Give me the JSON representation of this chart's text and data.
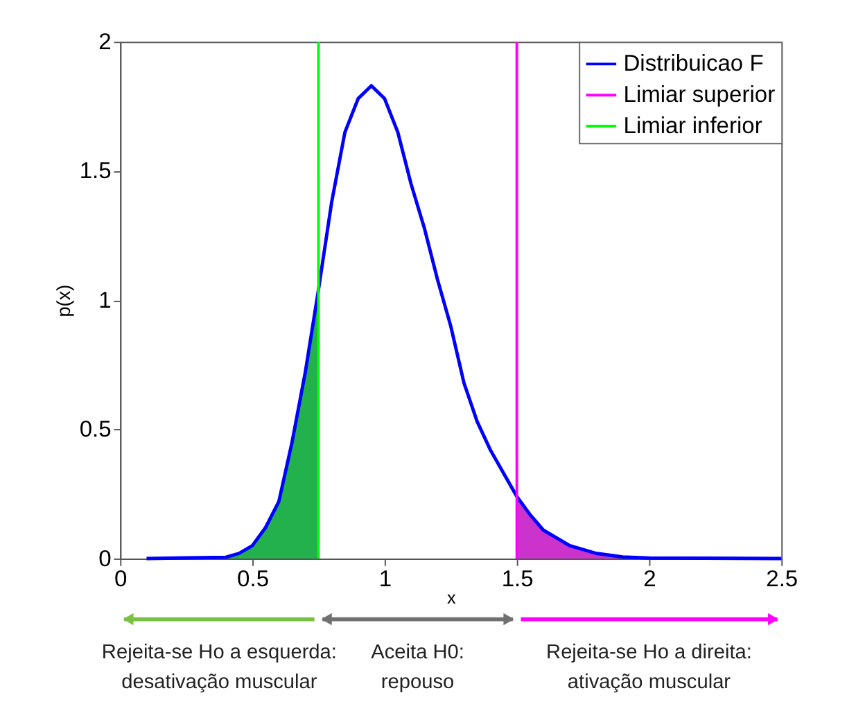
{
  "chart_data": {
    "type": "line",
    "xlabel": "x",
    "ylabel": "p(x)",
    "xlim": [
      0,
      2.5
    ],
    "xticks": [
      0,
      0.5,
      1,
      1.5,
      2,
      2.5
    ],
    "ylim": [
      0,
      2
    ],
    "yticks": [
      0,
      0.5,
      1,
      1.5,
      2
    ],
    "grid": false,
    "legend": "top right",
    "marker": "none",
    "line_style": "solid",
    "series": [
      {
        "type": "area",
        "color": "#22b14c",
        "x": [
          0.1,
          0.4,
          0.45,
          0.5,
          0.55,
          0.6,
          0.65,
          0.7,
          0.75
        ],
        "values": [
          0,
          0.005,
          0.02,
          0.05,
          0.12,
          0.22,
          0.45,
          0.72,
          1.04
        ]
      },
      {
        "type": "area",
        "color": "#cc33cc",
        "x": [
          1.5,
          1.55,
          1.6,
          1.7,
          1.8,
          1.9,
          2.0
        ],
        "values": [
          0.24,
          0.17,
          0.11,
          0.05,
          0.02,
          0.006,
          0.002
        ]
      },
      {
        "name": "Distribuicao F",
        "color": "#0000ff",
        "x": [
          0.1,
          0.4,
          0.45,
          0.5,
          0.55,
          0.6,
          0.65,
          0.7,
          0.75,
          0.8,
          0.85,
          0.9,
          0.95,
          1.0,
          1.05,
          1.1,
          1.15,
          1.2,
          1.25,
          1.3,
          1.35,
          1.4,
          1.45,
          1.5,
          1.55,
          1.6,
          1.7,
          1.8,
          1.9,
          2.0,
          2.5
        ],
        "values": [
          0,
          0.005,
          0.02,
          0.05,
          0.12,
          0.22,
          0.45,
          0.72,
          1.04,
          1.38,
          1.65,
          1.78,
          1.83,
          1.78,
          1.65,
          1.45,
          1.28,
          1.08,
          0.9,
          0.68,
          0.53,
          0.42,
          0.33,
          0.24,
          0.17,
          0.11,
          0.05,
          0.02,
          0.006,
          0.002,
          0
        ]
      },
      {
        "name": "Limiar superior",
        "color": "#ff00ff",
        "x": [
          1.5,
          1.5
        ],
        "values": [
          0,
          2
        ]
      },
      {
        "name": "Limiar inferior",
        "color": "#00ff00",
        "x": [
          0.75,
          0.75
        ],
        "values": [
          0,
          2
        ]
      }
    ],
    "annotations": [
      "Rejeita-se Ho a esquerda:\ndesativação muscular",
      "Aceita H0:\nrepouso",
      "Rejeita-se Ho a direita:\nativação muscular"
    ]
  }
}
